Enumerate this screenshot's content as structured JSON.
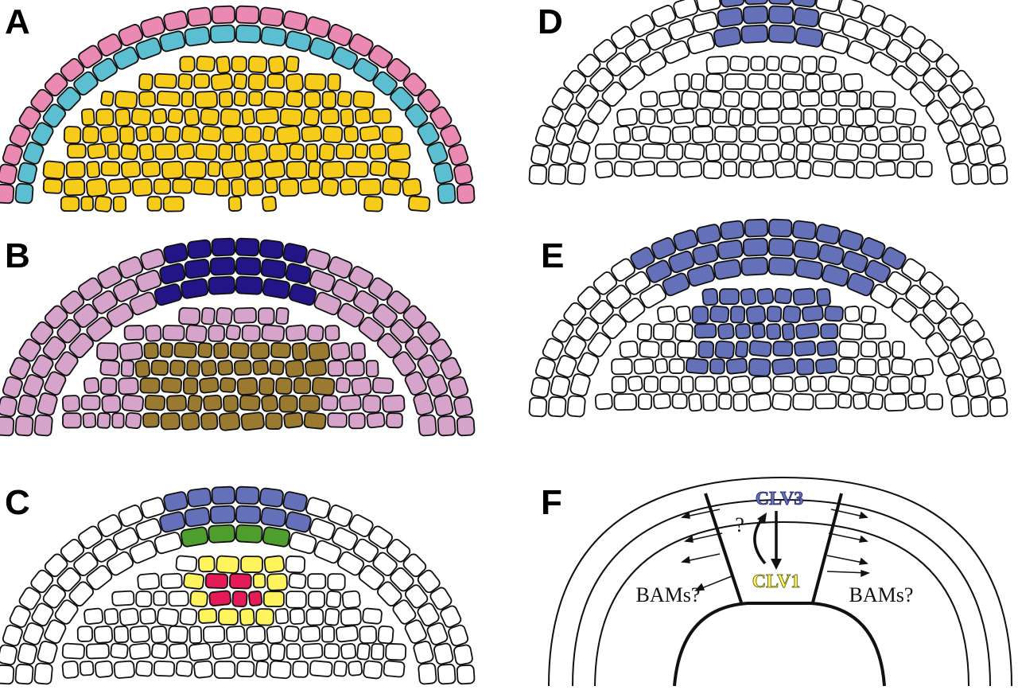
{
  "figure": {
    "panels": [
      {
        "letter": "A"
      },
      {
        "letter": "B"
      },
      {
        "letter": "C"
      },
      {
        "letter": "D"
      },
      {
        "letter": "E"
      },
      {
        "letter": "F"
      }
    ],
    "panel_f": {
      "clv3": "CLV3",
      "clv1": "CLV1",
      "question": "?",
      "bams_left": "BAMs?",
      "bams_right": "BAMs?"
    }
  },
  "colors": {
    "pink": "#ea8ab3",
    "cyan": "#5bbfd1",
    "yellow": "#f7cb1a",
    "lavender": "#d6a3cb",
    "navy": "#231488",
    "olive": "#9a7a30",
    "periwinkle": "#6470b8",
    "green": "#4f9e2d",
    "light_yellow": "#fff45e",
    "red": "#e51b57",
    "white": "#ffffff",
    "outline": "#111111",
    "clv1_text": "#fff45e"
  }
}
